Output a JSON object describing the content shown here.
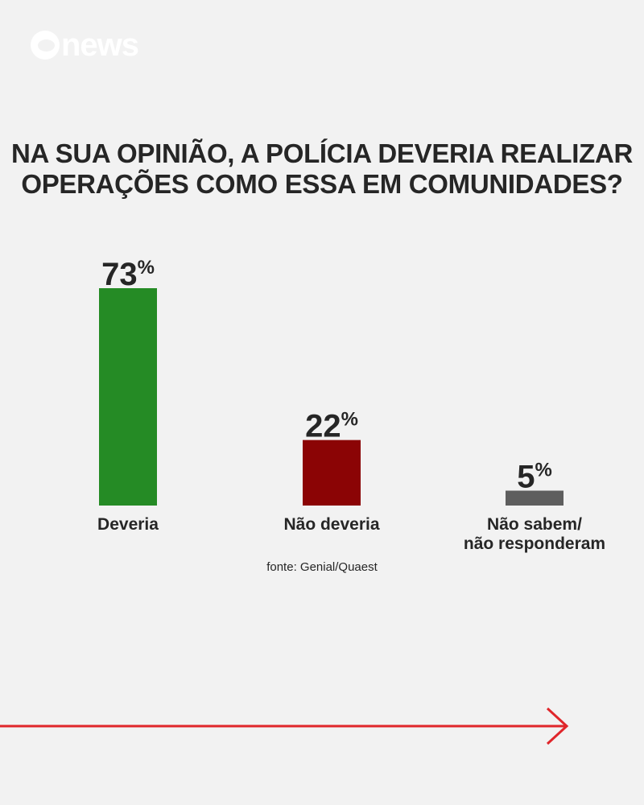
{
  "brand": {
    "name": "news",
    "logo_icon": "globo-icon",
    "color": "#ffffff"
  },
  "chart_data": {
    "type": "bar",
    "title_lines": [
      "NA SUA OPINIÃO, A POLÍCIA DEVERIA REALIZAR",
      "OPERAÇÕES COMO ESSA EM COMUNIDADES?"
    ],
    "categories": [
      "Deveria",
      "Não deveria",
      "Não sabem/\nnão responderam"
    ],
    "values": [
      73,
      22,
      5
    ],
    "value_labels": [
      "73",
      "22",
      "5"
    ],
    "unit": "%",
    "colors": [
      "#258b25",
      "#8b0405",
      "#5e5e5e"
    ],
    "ylim": [
      0,
      73
    ],
    "grid": false,
    "legend": "none"
  },
  "source": "fonte: Genial/Quaest",
  "accent": "#e0262b"
}
